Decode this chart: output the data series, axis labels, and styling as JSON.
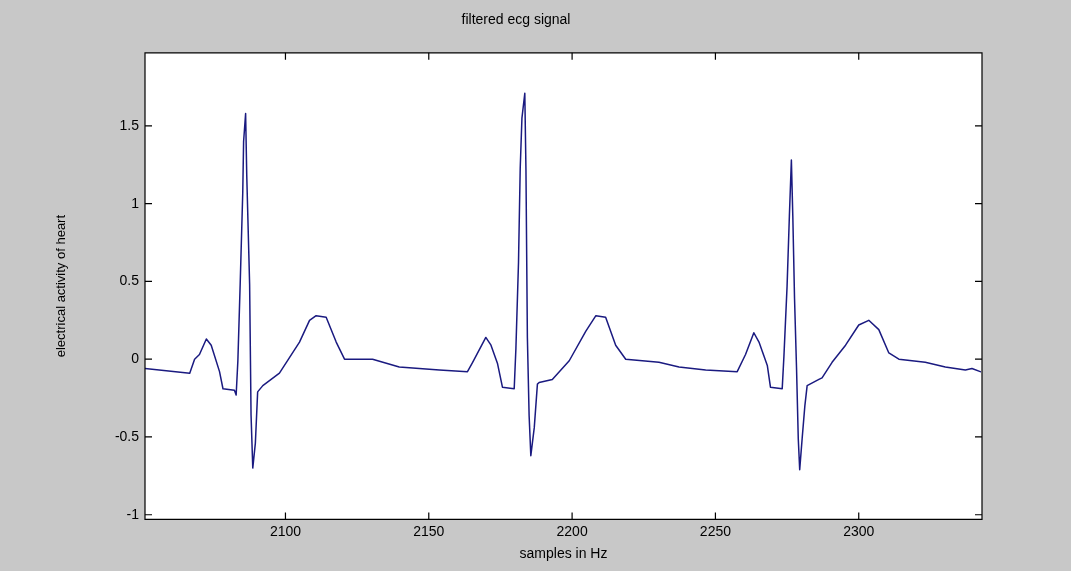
{
  "chart_data": {
    "type": "line",
    "title": "filtered ecg signal",
    "xlabel": "samples in Hz",
    "ylabel": "electrical activity of heart",
    "x": [
      2051,
      2066.6,
      2068.3,
      2070,
      2072.4,
      2074.1,
      2077,
      2078.2,
      2082.2,
      2082.8,
      2083.4,
      2084.2,
      2085.1,
      2085.4,
      2086.1,
      2086.5,
      2087.5,
      2088,
      2088.6,
      2089.5,
      2090.3,
      2092.1,
      2097.9,
      2104.9,
      2108.4,
      2110.7,
      2114.2,
      2117.7,
      2120.6,
      2130.4,
      2139.7,
      2153.7,
      2163.5,
      2165.3,
      2167.6,
      2169.9,
      2171.7,
      2174,
      2175.7,
      2179.8,
      2180.4,
      2181.3,
      2181.9,
      2182.5,
      2183.5,
      2183.9,
      2184.4,
      2185,
      2185.6,
      2186.8,
      2187.9,
      2188.5,
      2193.1,
      2199,
      2204.8,
      2208.3,
      2211.7,
      2215.2,
      2218.7,
      2230.3,
      2237.3,
      2246.6,
      2257.6,
      2260.5,
      2263.4,
      2265.2,
      2268.1,
      2269.2,
      2273.3,
      2273.9,
      2275,
      2275.8,
      2276.5,
      2277,
      2277.6,
      2278.3,
      2278.9,
      2279.4,
      2280.3,
      2281.2,
      2282,
      2286.1,
      2287.2,
      2290.7,
      2295.4,
      2300,
      2303.5,
      2307,
      2310.5,
      2314,
      2323.2,
      2330.2,
      2337.2,
      2339.5,
      2342.4
    ],
    "series": [
      {
        "color": "#1a1a80",
        "values": [
          -0.06,
          -0.09,
          0.0,
          0.03,
          0.13,
          0.09,
          -0.08,
          -0.19,
          -0.2,
          -0.23,
          -0.01,
          0.48,
          1.07,
          1.4,
          1.58,
          1.18,
          0.48,
          -0.36,
          -0.7,
          -0.54,
          -0.21,
          -0.17,
          -0.09,
          0.11,
          0.25,
          0.28,
          0.27,
          0.11,
          0.0,
          0.0,
          -0.05,
          -0.07,
          -0.08,
          -0.02,
          0.06,
          0.14,
          0.09,
          -0.03,
          -0.18,
          -0.19,
          0.07,
          0.62,
          1.23,
          1.55,
          1.71,
          1.22,
          0.14,
          -0.36,
          -0.62,
          -0.44,
          -0.16,
          -0.15,
          -0.13,
          -0.01,
          0.18,
          0.28,
          0.27,
          0.09,
          0.0,
          -0.02,
          -0.05,
          -0.07,
          -0.08,
          0.03,
          0.17,
          0.11,
          -0.04,
          -0.18,
          -0.19,
          0.02,
          0.47,
          0.92,
          1.28,
          0.92,
          0.39,
          -0.06,
          -0.51,
          -0.71,
          -0.5,
          -0.3,
          -0.17,
          -0.13,
          -0.12,
          -0.02,
          0.09,
          0.22,
          0.25,
          0.19,
          0.04,
          0.0,
          -0.02,
          -0.05,
          -0.07,
          -0.06,
          -0.08
        ]
      }
    ],
    "xlim": [
      2051,
      2343
    ],
    "ylim": [
      -1.03,
      1.97
    ],
    "xticks": [
      2100,
      2150,
      2200,
      2250,
      2300
    ],
    "yticks": [
      -1,
      -0.5,
      0,
      0.5,
      1,
      1.5
    ],
    "marker": "none",
    "line_style": "solid"
  }
}
